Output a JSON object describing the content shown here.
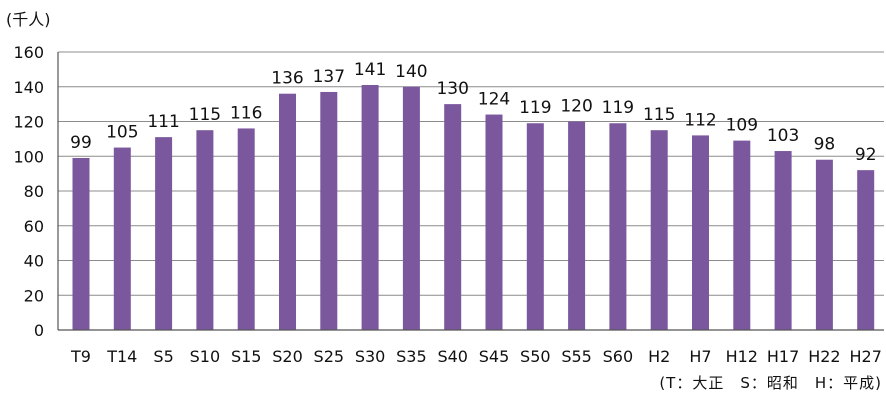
{
  "unit_label": "(千人)",
  "footnote": "(T：大正　S：昭和　H：平成)",
  "chart_data": {
    "type": "bar",
    "title": "",
    "xlabel": "",
    "ylabel": "(千人)",
    "ylim": [
      0,
      160
    ],
    "yticks": [
      0,
      20,
      40,
      60,
      80,
      100,
      120,
      140,
      160
    ],
    "grid": true,
    "bar_color": "#7b579e",
    "categories": [
      "T9",
      "T14",
      "S5",
      "S10",
      "S15",
      "S20",
      "S25",
      "S30",
      "S35",
      "S40",
      "S45",
      "S50",
      "S55",
      "S60",
      "H2",
      "H7",
      "H12",
      "H17",
      "H22",
      "H27"
    ],
    "values": [
      99,
      105,
      111,
      115,
      116,
      136,
      137,
      141,
      140,
      130,
      124,
      119,
      120,
      119,
      115,
      112,
      109,
      103,
      98,
      92
    ]
  }
}
